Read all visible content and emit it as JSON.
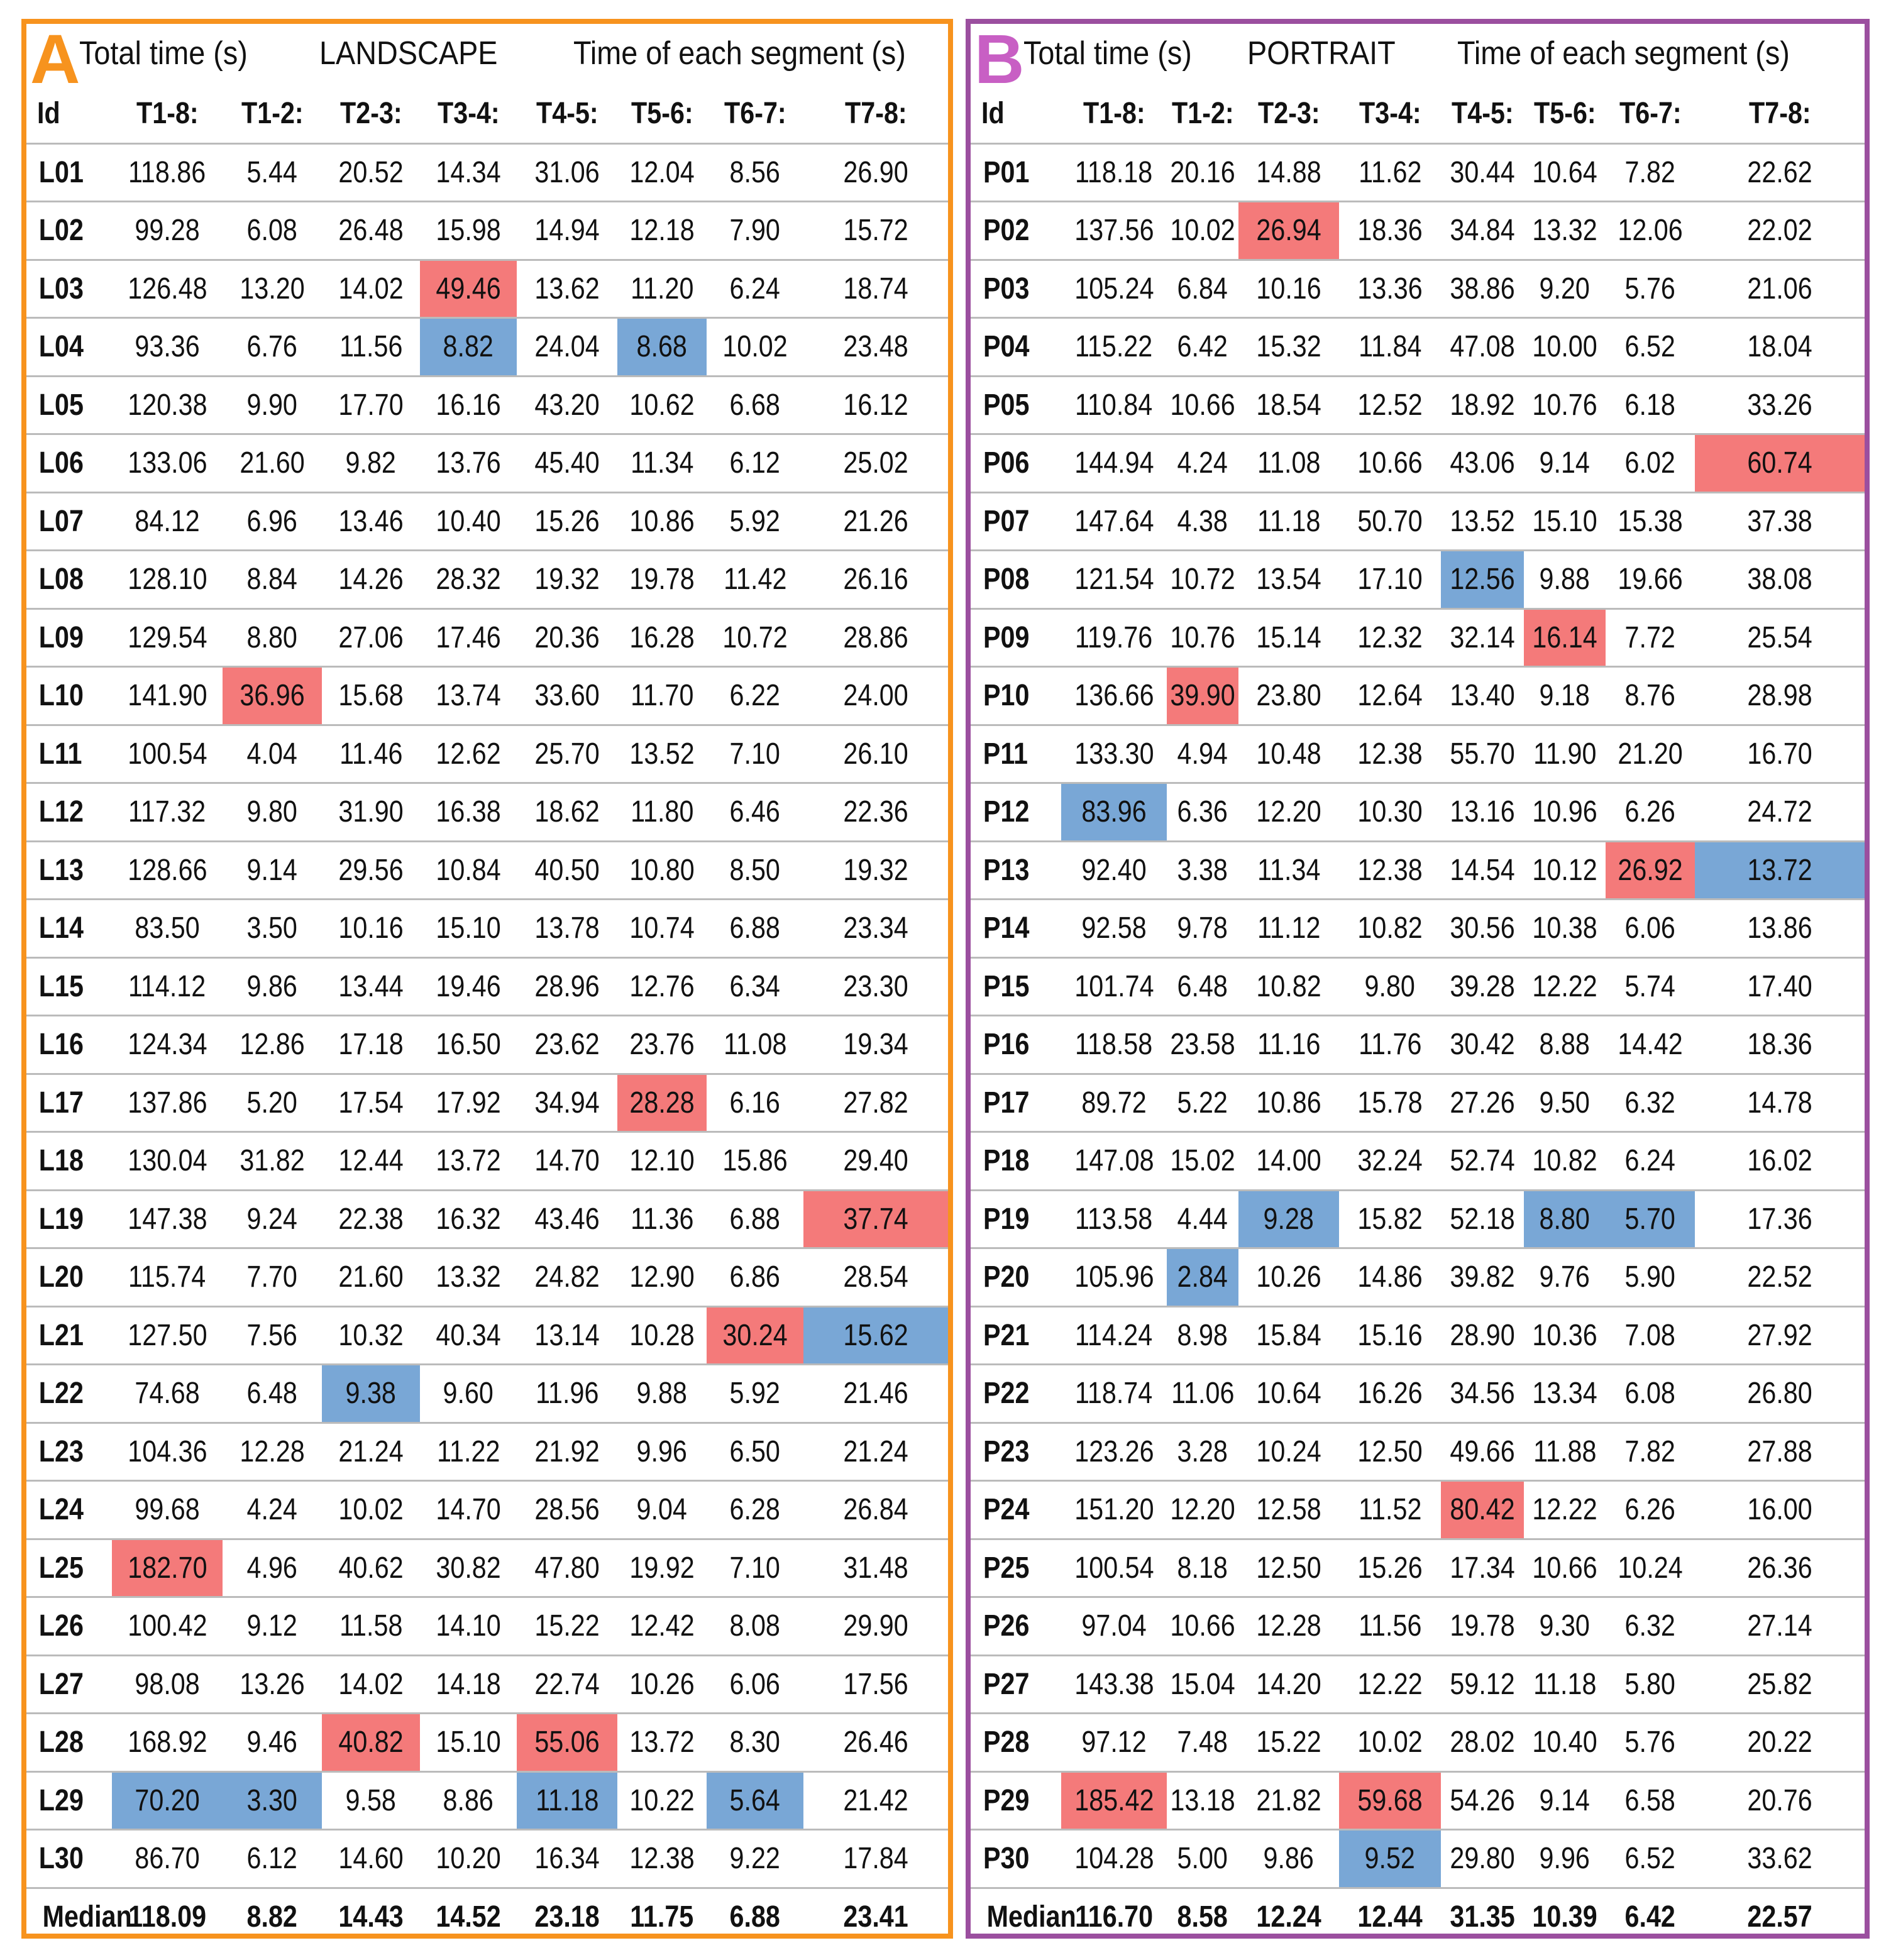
{
  "landscape": {
    "letter": "A",
    "title_total": "Total time (s)",
    "title_mode": "LANDSCAPE",
    "title_segments": "Time of each segment (s)",
    "columns": [
      "Id",
      "T1-8:",
      "T1-2:",
      "T2-3:",
      "T3-4:",
      "T4-5:",
      "T5-6:",
      "T6-7:",
      "T7-8:"
    ],
    "rows": [
      [
        "L01",
        "118.86",
        "5.44",
        "20.52",
        "14.34",
        "31.06",
        "12.04",
        "8.56",
        "26.90"
      ],
      [
        "L02",
        "99.28",
        "6.08",
        "26.48",
        "15.98",
        "14.94",
        "12.18",
        "7.90",
        "15.72"
      ],
      [
        "L03",
        "126.48",
        "13.20",
        "14.02",
        "49.46",
        "13.62",
        "11.20",
        "6.24",
        "18.74"
      ],
      [
        "L04",
        "93.36",
        "6.76",
        "11.56",
        "8.82",
        "24.04",
        "8.68",
        "10.02",
        "23.48"
      ],
      [
        "L05",
        "120.38",
        "9.90",
        "17.70",
        "16.16",
        "43.20",
        "10.62",
        "6.68",
        "16.12"
      ],
      [
        "L06",
        "133.06",
        "21.60",
        "9.82",
        "13.76",
        "45.40",
        "11.34",
        "6.12",
        "25.02"
      ],
      [
        "L07",
        "84.12",
        "6.96",
        "13.46",
        "10.40",
        "15.26",
        "10.86",
        "5.92",
        "21.26"
      ],
      [
        "L08",
        "128.10",
        "8.84",
        "14.26",
        "28.32",
        "19.32",
        "19.78",
        "11.42",
        "26.16"
      ],
      [
        "L09",
        "129.54",
        "8.80",
        "27.06",
        "17.46",
        "20.36",
        "16.28",
        "10.72",
        "28.86"
      ],
      [
        "L10",
        "141.90",
        "36.96",
        "15.68",
        "13.74",
        "33.60",
        "11.70",
        "6.22",
        "24.00"
      ],
      [
        "L11",
        "100.54",
        "4.04",
        "11.46",
        "12.62",
        "25.70",
        "13.52",
        "7.10",
        "26.10"
      ],
      [
        "L12",
        "117.32",
        "9.80",
        "31.90",
        "16.38",
        "18.62",
        "11.80",
        "6.46",
        "22.36"
      ],
      [
        "L13",
        "128.66",
        "9.14",
        "29.56",
        "10.84",
        "40.50",
        "10.80",
        "8.50",
        "19.32"
      ],
      [
        "L14",
        "83.50",
        "3.50",
        "10.16",
        "15.10",
        "13.78",
        "10.74",
        "6.88",
        "23.34"
      ],
      [
        "L15",
        "114.12",
        "9.86",
        "13.44",
        "19.46",
        "28.96",
        "12.76",
        "6.34",
        "23.30"
      ],
      [
        "L16",
        "124.34",
        "12.86",
        "17.18",
        "16.50",
        "23.62",
        "23.76",
        "11.08",
        "19.34"
      ],
      [
        "L17",
        "137.86",
        "5.20",
        "17.54",
        "17.92",
        "34.94",
        "28.28",
        "6.16",
        "27.82"
      ],
      [
        "L18",
        "130.04",
        "31.82",
        "12.44",
        "13.72",
        "14.70",
        "12.10",
        "15.86",
        "29.40"
      ],
      [
        "L19",
        "147.38",
        "9.24",
        "22.38",
        "16.32",
        "43.46",
        "11.36",
        "6.88",
        "37.74"
      ],
      [
        "L20",
        "115.74",
        "7.70",
        "21.60",
        "13.32",
        "24.82",
        "12.90",
        "6.86",
        "28.54"
      ],
      [
        "L21",
        "127.50",
        "7.56",
        "10.32",
        "40.34",
        "13.14",
        "10.28",
        "30.24",
        "15.62"
      ],
      [
        "L22",
        "74.68",
        "6.48",
        "9.38",
        "9.60",
        "11.96",
        "9.88",
        "5.92",
        "21.46"
      ],
      [
        "L23",
        "104.36",
        "12.28",
        "21.24",
        "11.22",
        "21.92",
        "9.96",
        "6.50",
        "21.24"
      ],
      [
        "L24",
        "99.68",
        "4.24",
        "10.02",
        "14.70",
        "28.56",
        "9.04",
        "6.28",
        "26.84"
      ],
      [
        "L25",
        "182.70",
        "4.96",
        "40.62",
        "30.82",
        "47.80",
        "19.92",
        "7.10",
        "31.48"
      ],
      [
        "L26",
        "100.42",
        "9.12",
        "11.58",
        "14.10",
        "15.22",
        "12.42",
        "8.08",
        "29.90"
      ],
      [
        "L27",
        "98.08",
        "13.26",
        "14.02",
        "14.18",
        "22.74",
        "10.26",
        "6.06",
        "17.56"
      ],
      [
        "L28",
        "168.92",
        "9.46",
        "40.82",
        "15.10",
        "55.06",
        "13.72",
        "8.30",
        "26.46"
      ],
      [
        "L29",
        "70.20",
        "3.30",
        "9.58",
        "8.86",
        "11.18",
        "10.22",
        "5.64",
        "21.42"
      ],
      [
        "L30",
        "86.70",
        "6.12",
        "14.60",
        "10.20",
        "16.34",
        "12.38",
        "9.22",
        "17.84"
      ]
    ],
    "median": [
      "Median",
      "118.09",
      "8.82",
      "14.43",
      "14.52",
      "23.18",
      "11.75",
      "6.88",
      "23.41"
    ],
    "highlights_red": [
      [
        2,
        4
      ],
      [
        9,
        2
      ],
      [
        16,
        6
      ],
      [
        18,
        8
      ],
      [
        20,
        7
      ],
      [
        24,
        1
      ],
      [
        27,
        3
      ],
      [
        27,
        5
      ]
    ],
    "highlights_blue": [
      [
        3,
        4
      ],
      [
        3,
        6
      ],
      [
        20,
        8
      ],
      [
        21,
        3
      ],
      [
        28,
        1
      ],
      [
        28,
        2
      ],
      [
        28,
        5
      ],
      [
        28,
        7
      ]
    ],
    "colors": {
      "frame": "#f7931e",
      "letter": "#f7931e",
      "red": "#f47a7a",
      "blue": "#79a7d6"
    }
  },
  "portrait": {
    "letter": "B",
    "title_total": "Total time (s)",
    "title_mode": "PORTRAIT",
    "title_segments": "Time of each segment (s)",
    "columns": [
      "Id",
      "T1-8:",
      "T1-2:",
      "T2-3:",
      "T3-4:",
      "T4-5:",
      "T5-6:",
      "T6-7:",
      "T7-8:"
    ],
    "rows": [
      [
        "P01",
        "118.18",
        "20.16",
        "14.88",
        "11.62",
        "30.44",
        "10.64",
        "7.82",
        "22.62"
      ],
      [
        "P02",
        "137.56",
        "10.02",
        "26.94",
        "18.36",
        "34.84",
        "13.32",
        "12.06",
        "22.02"
      ],
      [
        "P03",
        "105.24",
        "6.84",
        "10.16",
        "13.36",
        "38.86",
        "9.20",
        "5.76",
        "21.06"
      ],
      [
        "P04",
        "115.22",
        "6.42",
        "15.32",
        "11.84",
        "47.08",
        "10.00",
        "6.52",
        "18.04"
      ],
      [
        "P05",
        "110.84",
        "10.66",
        "18.54",
        "12.52",
        "18.92",
        "10.76",
        "6.18",
        "33.26"
      ],
      [
        "P06",
        "144.94",
        "4.24",
        "11.08",
        "10.66",
        "43.06",
        "9.14",
        "6.02",
        "60.74"
      ],
      [
        "P07",
        "147.64",
        "4.38",
        "11.18",
        "50.70",
        "13.52",
        "15.10",
        "15.38",
        "37.38"
      ],
      [
        "P08",
        "121.54",
        "10.72",
        "13.54",
        "17.10",
        "12.56",
        "9.88",
        "19.66",
        "38.08"
      ],
      [
        "P09",
        "119.76",
        "10.76",
        "15.14",
        "12.32",
        "32.14",
        "16.14",
        "7.72",
        "25.54"
      ],
      [
        "P10",
        "136.66",
        "39.90",
        "23.80",
        "12.64",
        "13.40",
        "9.18",
        "8.76",
        "28.98"
      ],
      [
        "P11",
        "133.30",
        "4.94",
        "10.48",
        "12.38",
        "55.70",
        "11.90",
        "21.20",
        "16.70"
      ],
      [
        "P12",
        "83.96",
        "6.36",
        "12.20",
        "10.30",
        "13.16",
        "10.96",
        "6.26",
        "24.72"
      ],
      [
        "P13",
        "92.40",
        "3.38",
        "11.34",
        "12.38",
        "14.54",
        "10.12",
        "26.92",
        "13.72"
      ],
      [
        "P14",
        "92.58",
        "9.78",
        "11.12",
        "10.82",
        "30.56",
        "10.38",
        "6.06",
        "13.86"
      ],
      [
        "P15",
        "101.74",
        "6.48",
        "10.82",
        "9.80",
        "39.28",
        "12.22",
        "5.74",
        "17.40"
      ],
      [
        "P16",
        "118.58",
        "23.58",
        "11.16",
        "11.76",
        "30.42",
        "8.88",
        "14.42",
        "18.36"
      ],
      [
        "P17",
        "89.72",
        "5.22",
        "10.86",
        "15.78",
        "27.26",
        "9.50",
        "6.32",
        "14.78"
      ],
      [
        "P18",
        "147.08",
        "15.02",
        "14.00",
        "32.24",
        "52.74",
        "10.82",
        "6.24",
        "16.02"
      ],
      [
        "P19",
        "113.58",
        "4.44",
        "9.28",
        "15.82",
        "52.18",
        "8.80",
        "5.70",
        "17.36"
      ],
      [
        "P20",
        "105.96",
        "2.84",
        "10.26",
        "14.86",
        "39.82",
        "9.76",
        "5.90",
        "22.52"
      ],
      [
        "P21",
        "114.24",
        "8.98",
        "15.84",
        "15.16",
        "28.90",
        "10.36",
        "7.08",
        "27.92"
      ],
      [
        "P22",
        "118.74",
        "11.06",
        "10.64",
        "16.26",
        "34.56",
        "13.34",
        "6.08",
        "26.80"
      ],
      [
        "P23",
        "123.26",
        "3.28",
        "10.24",
        "12.50",
        "49.66",
        "11.88",
        "7.82",
        "27.88"
      ],
      [
        "P24",
        "151.20",
        "12.20",
        "12.58",
        "11.52",
        "80.42",
        "12.22",
        "6.26",
        "16.00"
      ],
      [
        "P25",
        "100.54",
        "8.18",
        "12.50",
        "15.26",
        "17.34",
        "10.66",
        "10.24",
        "26.36"
      ],
      [
        "P26",
        "97.04",
        "10.66",
        "12.28",
        "11.56",
        "19.78",
        "9.30",
        "6.32",
        "27.14"
      ],
      [
        "P27",
        "143.38",
        "15.04",
        "14.20",
        "12.22",
        "59.12",
        "11.18",
        "5.80",
        "25.82"
      ],
      [
        "P28",
        "97.12",
        "7.48",
        "15.22",
        "10.02",
        "28.02",
        "10.40",
        "5.76",
        "20.22"
      ],
      [
        "P29",
        "185.42",
        "13.18",
        "21.82",
        "59.68",
        "54.26",
        "9.14",
        "6.58",
        "20.76"
      ],
      [
        "P30",
        "104.28",
        "5.00",
        "9.86",
        "9.52",
        "29.80",
        "9.96",
        "6.52",
        "33.62"
      ]
    ],
    "median": [
      "Median",
      "116.70",
      "8.58",
      "12.24",
      "12.44",
      "31.35",
      "10.39",
      "6.42",
      "22.57"
    ],
    "highlights_red": [
      [
        1,
        3
      ],
      [
        5,
        8
      ],
      [
        8,
        6
      ],
      [
        9,
        2
      ],
      [
        12,
        7
      ],
      [
        23,
        5
      ],
      [
        28,
        1
      ],
      [
        28,
        4
      ]
    ],
    "highlights_blue": [
      [
        7,
        5
      ],
      [
        11,
        1
      ],
      [
        12,
        8
      ],
      [
        18,
        3
      ],
      [
        18,
        6
      ],
      [
        18,
        7
      ],
      [
        19,
        2
      ],
      [
        29,
        4
      ]
    ],
    "colors": {
      "frame": "#9b4f9f",
      "letter": "#c85fc4",
      "red": "#f47a7a",
      "blue": "#79a7d6"
    }
  }
}
